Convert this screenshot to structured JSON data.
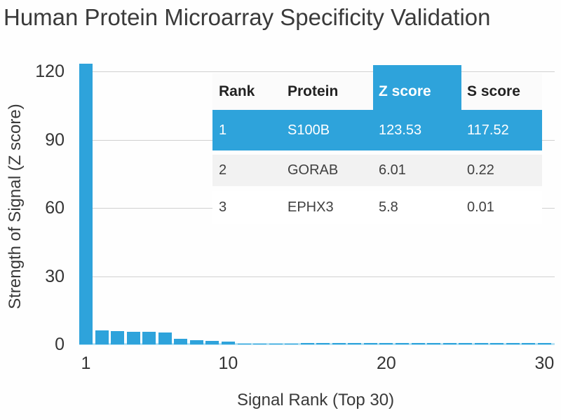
{
  "title": "Human Protein Microarray Specificity Validation",
  "chart_data": {
    "type": "bar",
    "title": "Human Protein Microarray Specificity Validation",
    "xlabel": "Signal Rank (Top 30)",
    "ylabel": "Strength of Signal (Z score)",
    "categories": [
      1,
      2,
      3,
      4,
      5,
      6,
      7,
      8,
      9,
      10,
      11,
      12,
      13,
      14,
      15,
      16,
      17,
      18,
      19,
      20,
      21,
      22,
      23,
      24,
      25,
      26,
      27,
      28,
      29,
      30
    ],
    "values": [
      123.53,
      6.01,
      5.8,
      5.6,
      5.5,
      5.1,
      2.4,
      2.0,
      1.6,
      1.2,
      0.45,
      0.4,
      0.4,
      0.35,
      0.7,
      0.7,
      0.7,
      0.65,
      0.7,
      0.7,
      0.65,
      0.7,
      0.7,
      0.65,
      0.7,
      0.7,
      0.65,
      0.7,
      0.7,
      0.7
    ],
    "ylim": [
      0,
      130
    ],
    "yticks": [
      0,
      30,
      60,
      90,
      120
    ],
    "xticks": [
      1,
      10,
      20,
      30
    ],
    "grid": true,
    "legend_position": "none",
    "bar_color": "#2ea3db",
    "axis_strip_color": "#b8e2f4",
    "grid_color": "#a9a9a9"
  },
  "table": {
    "headers": [
      "Rank",
      "Protein",
      "Z score",
      "S score"
    ],
    "highlighted_header": "Z score",
    "highlighted_row_index": 0,
    "rows": [
      [
        "1",
        "S100B",
        "123.53",
        "117.52"
      ],
      [
        "2",
        "GORAB",
        "6.01",
        "0.22"
      ],
      [
        "3",
        "EPHX3",
        "5.8",
        "0.01"
      ]
    ]
  },
  "colors": {
    "accent_blue": "#2ea3db",
    "row_alt_gray": "#f2f2f2",
    "grid_gray": "#a9a9a9",
    "axis_strip_cyan": "#b8e2f4",
    "text_dark": "#3a3a3a"
  }
}
